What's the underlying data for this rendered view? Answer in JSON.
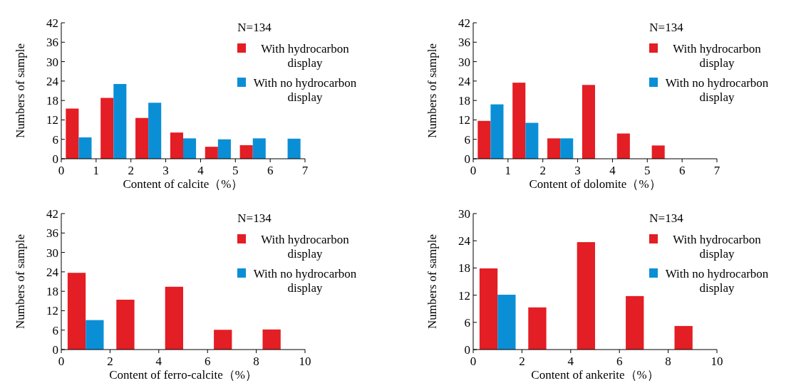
{
  "chart_data": [
    {
      "type": "bar",
      "xlabel": "Content of calcite（%）",
      "ylabel": "Numbers of sample",
      "annotations": [
        "N=134"
      ],
      "x": [
        0.5,
        1.5,
        2.5,
        3.5,
        4.5,
        5.5,
        6.5
      ],
      "xlim": [
        0,
        7
      ],
      "xticks": [
        0,
        1,
        2,
        3,
        4,
        5,
        6,
        7
      ],
      "ylim": [
        0,
        42
      ],
      "yticks": [
        0,
        6,
        12,
        18,
        24,
        30,
        36,
        42
      ],
      "legend": "top right",
      "series": [
        {
          "name": "With hydrocarbon display",
          "color": "#e31e24",
          "values": [
            15.5,
            18.8,
            12.6,
            8.1,
            3.7,
            4.2,
            null
          ]
        },
        {
          "name": "With no hydrocarbon display",
          "color": "#0a8fd6",
          "values": [
            6.6,
            23.1,
            17.3,
            6.3,
            6.0,
            6.3,
            6.2
          ]
        }
      ]
    },
    {
      "type": "bar",
      "xlabel": "Content of dolomite（%）",
      "ylabel": "Numbers of sample",
      "annotations": [
        "N=134"
      ],
      "x": [
        0.5,
        1.5,
        2.5,
        3.5,
        4.5,
        5.5
      ],
      "xlim": [
        0,
        7
      ],
      "xticks": [
        0,
        1,
        2,
        3,
        4,
        5,
        6,
        7
      ],
      "ylim": [
        0,
        42
      ],
      "yticks": [
        0,
        6,
        12,
        18,
        24,
        30,
        36,
        42
      ],
      "legend": "top right",
      "series": [
        {
          "name": "With hydrocarbon display",
          "color": "#e31e24",
          "values": [
            11.7,
            23.5,
            6.3,
            22.8,
            7.8,
            4.1
          ]
        },
        {
          "name": "With no hydrocarbon display",
          "color": "#0a8fd6",
          "values": [
            16.8,
            11.1,
            6.3,
            null,
            null,
            null
          ]
        }
      ]
    },
    {
      "type": "bar",
      "xlabel": "Content of ferro-calcite（%）",
      "ylabel": "Numbers of sample",
      "annotations": [
        "N=134"
      ],
      "x": [
        1,
        3,
        5,
        7,
        9
      ],
      "xlim": [
        0,
        10
      ],
      "xticks": [
        0,
        2,
        4,
        6,
        8,
        10
      ],
      "ylim": [
        0,
        42
      ],
      "yticks": [
        0,
        6,
        12,
        18,
        24,
        30,
        36,
        42
      ],
      "legend": "top right",
      "series": [
        {
          "name": "With hydrocarbon display",
          "color": "#e31e24",
          "values": [
            23.7,
            15.4,
            19.4,
            6.1,
            6.2
          ]
        },
        {
          "name": "With no hydrocarbon display",
          "color": "#0a8fd6",
          "values": [
            9.1,
            null,
            null,
            null,
            null
          ]
        }
      ]
    },
    {
      "type": "bar",
      "xlabel": "Content of ankerite（%）",
      "ylabel": "Numbers of sample",
      "annotations": [
        "N=134"
      ],
      "x": [
        1,
        3,
        5,
        7,
        9
      ],
      "xlim": [
        0,
        10
      ],
      "xticks": [
        0,
        2,
        4,
        6,
        8,
        10
      ],
      "ylim": [
        0,
        30
      ],
      "yticks": [
        0,
        6,
        12,
        18,
        24,
        30
      ],
      "legend": "top right",
      "series": [
        {
          "name": "With hydrocarbon display",
          "color": "#e31e24",
          "values": [
            17.9,
            9.3,
            23.7,
            11.8,
            5.2
          ]
        },
        {
          "name": "With no hydrocarbon display",
          "color": "#0a8fd6",
          "values": [
            12.1,
            null,
            null,
            null,
            null
          ]
        }
      ]
    }
  ]
}
